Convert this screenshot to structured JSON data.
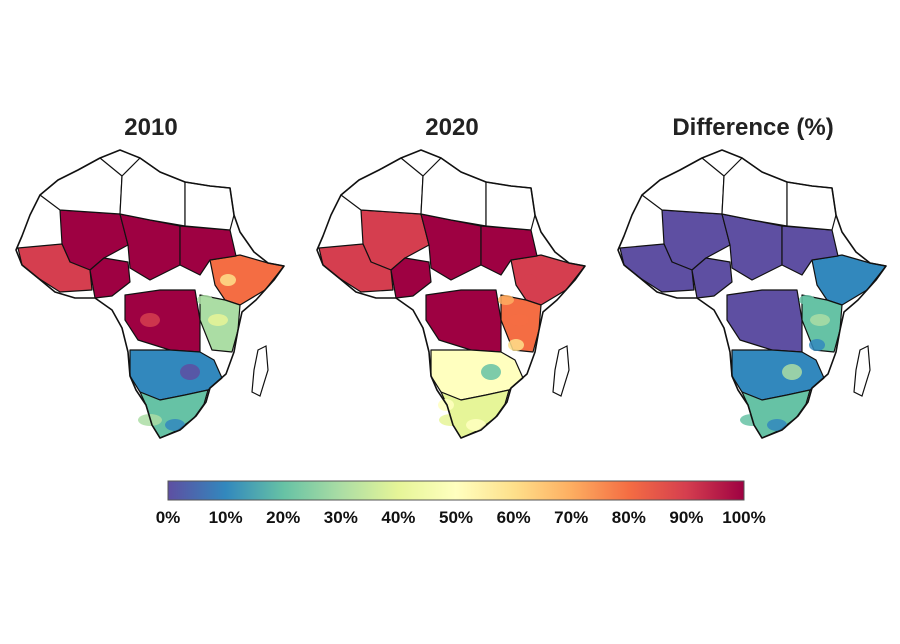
{
  "panels": [
    {
      "title": "2010",
      "mode": "2010"
    },
    {
      "title": "2020",
      "mode": "2020"
    },
    {
      "title": "Difference (%)",
      "mode": "diff"
    }
  ],
  "colorbar": {
    "ticks": [
      "0%",
      "10%",
      "20%",
      "30%",
      "40%",
      "50%",
      "60%",
      "70%",
      "80%",
      "90%",
      "100%"
    ],
    "colors": [
      "#5e4fa2",
      "#3288bd",
      "#66c2a5",
      "#abdda4",
      "#e6f598",
      "#ffffbf",
      "#fee08b",
      "#fdae61",
      "#f46d43",
      "#d53e4f",
      "#9e0142"
    ]
  }
}
